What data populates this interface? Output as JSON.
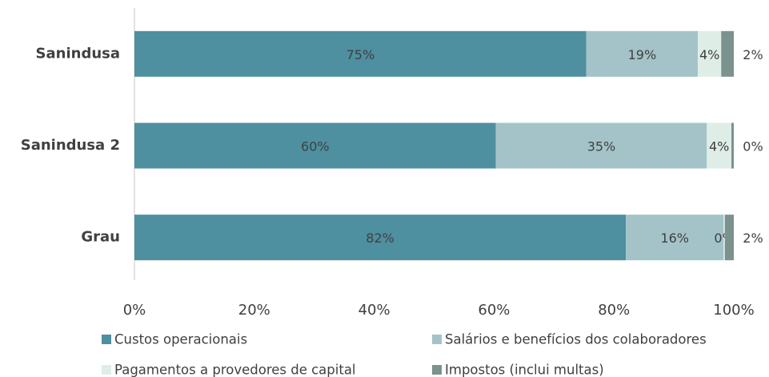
{
  "chart_data": {
    "type": "bar",
    "orientation": "horizontal",
    "stacked": true,
    "categories": [
      "Sanindusa",
      "Sanindusa 2",
      "Grau"
    ],
    "series": [
      {
        "name": "Custos operacionais",
        "color": "#4e8fa0",
        "values": [
          75.4,
          60.3,
          82.0
        ],
        "value_labels": [
          "75%",
          "60%",
          "82%"
        ]
      },
      {
        "name": "Salários e benefícios dos colaboradores",
        "color": "#a3c3c8",
        "values": [
          18.6,
          35.2,
          16.3
        ],
        "value_labels": [
          "19%",
          "35%",
          "16%"
        ]
      },
      {
        "name": "Pagamentos a provedores de capital",
        "color": "#deeee7",
        "values": [
          3.9,
          4.1,
          0.2
        ],
        "value_labels": [
          "4%",
          "4%",
          "0%"
        ]
      },
      {
        "name": "Impostos (inclui multas)",
        "color": "#7b928e",
        "values": [
          2.1,
          0.4,
          1.5
        ],
        "value_labels": [
          "2%",
          "0%",
          "2%"
        ]
      }
    ],
    "xlim": [
      0,
      100
    ],
    "xticks": [
      {
        "value": 0,
        "label": "0%"
      },
      {
        "value": 20,
        "label": "20%"
      },
      {
        "value": 40,
        "label": "40%"
      },
      {
        "value": 60,
        "label": "60%"
      },
      {
        "value": 80,
        "label": "80%"
      },
      {
        "value": 100,
        "label": "100%"
      }
    ],
    "legend": "bottom",
    "grid": false
  }
}
